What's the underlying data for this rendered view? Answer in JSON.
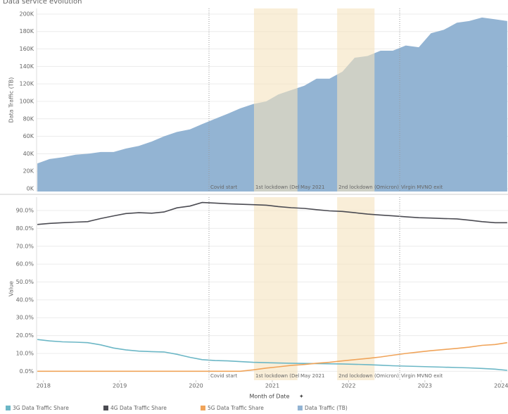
{
  "chart_data": [
    {
      "type": "area",
      "title": "Data service evolution",
      "y_label": "Data Traffic (TB)",
      "x": [
        2017.92,
        2018.08,
        2018.25,
        2018.42,
        2018.58,
        2018.75,
        2018.92,
        2019.08,
        2019.25,
        2019.42,
        2019.58,
        2019.75,
        2019.92,
        2020.08,
        2020.25,
        2020.42,
        2020.58,
        2020.75,
        2020.92,
        2021.08,
        2021.25,
        2021.42,
        2021.58,
        2021.75,
        2021.92,
        2022.08,
        2022.25,
        2022.42,
        2022.58,
        2022.75,
        2022.92,
        2023.08,
        2023.25,
        2023.42,
        2023.58,
        2023.75,
        2023.92,
        2024.08
      ],
      "series": [
        {
          "name": "Data Traffic (TB)",
          "color": "#93b4d3",
          "values": [
            29000,
            34000,
            36000,
            39000,
            40000,
            42000,
            42000,
            46000,
            49000,
            54000,
            60000,
            65000,
            68000,
            74000,
            80000,
            86000,
            92000,
            97000,
            100000,
            108000,
            113000,
            118000,
            126000,
            126000,
            134000,
            150000,
            152000,
            158000,
            158000,
            164000,
            162000,
            178000,
            182000,
            190000,
            192000,
            196000,
            194000,
            192000
          ]
        }
      ],
      "xlim": [
        2017.91,
        2024.09
      ],
      "ylim": [
        -3200,
        206400
      ],
      "yticks": [
        {
          "value": 0,
          "label": "0K"
        },
        {
          "value": 20000,
          "label": "20K"
        },
        {
          "value": 40000,
          "label": "40K"
        },
        {
          "value": 60000,
          "label": "60K"
        },
        {
          "value": 80000,
          "label": "80K"
        },
        {
          "value": 100000,
          "label": "100K"
        },
        {
          "value": 120000,
          "label": "120K"
        },
        {
          "value": 140000,
          "label": "140K"
        },
        {
          "value": 160000,
          "label": "160K"
        },
        {
          "value": 180000,
          "label": "180K"
        },
        {
          "value": 200000,
          "label": "200K"
        }
      ],
      "grid": true,
      "bands": [
        {
          "label": "1st lockdown (Del",
          "start": 2020.76,
          "end": 2021.33
        },
        {
          "label": "2nd lockdown (Omicron)",
          "start": 2021.85,
          "end": 2022.34
        }
      ],
      "markers": [
        {
          "label": "Covid start",
          "x": 2020.17,
          "line": true
        },
        {
          "label": "May 2021",
          "x": 2021.35,
          "line": false
        },
        {
          "label": "Virgin MVNO exit",
          "x": 2022.67,
          "line": true
        }
      ]
    },
    {
      "type": "line",
      "y_label": "Value",
      "x_label": "Month of Date",
      "x": [
        2017.92,
        2018.08,
        2018.25,
        2018.42,
        2018.58,
        2018.75,
        2018.92,
        2019.08,
        2019.25,
        2019.42,
        2019.58,
        2019.75,
        2019.92,
        2020.08,
        2020.25,
        2020.42,
        2020.58,
        2020.75,
        2020.92,
        2021.08,
        2021.25,
        2021.42,
        2021.58,
        2021.75,
        2021.92,
        2022.08,
        2022.25,
        2022.42,
        2022.58,
        2022.75,
        2022.92,
        2023.08,
        2023.25,
        2023.42,
        2023.58,
        2023.75,
        2023.92,
        2024.08
      ],
      "series": [
        {
          "name": "3G Data Traffic Share",
          "color": "#6cb7c6",
          "values": [
            17.8,
            17,
            16.5,
            16.3,
            16,
            14.8,
            13,
            12,
            11.3,
            11,
            10.8,
            9.5,
            7.8,
            6.5,
            6,
            5.8,
            5.4,
            5,
            4.8,
            4.6,
            4.5,
            4.4,
            4.3,
            4.2,
            4.1,
            3.9,
            3.7,
            3.4,
            3.1,
            2.9,
            2.7,
            2.5,
            2.3,
            2.1,
            1.9,
            1.6,
            1.2,
            0.5
          ]
        },
        {
          "name": "4G Data Traffic Share",
          "color": "#4b4b52",
          "values": [
            82.2,
            82.8,
            83.2,
            83.5,
            83.8,
            85.5,
            87,
            88.3,
            88.8,
            88.5,
            89.2,
            91.5,
            92.5,
            94.5,
            94.2,
            93.8,
            93.5,
            93.3,
            93,
            92.2,
            91.6,
            91.2,
            90.5,
            89.8,
            89.5,
            88.8,
            88,
            87.5,
            87,
            86.5,
            86,
            85.8,
            85.5,
            85.3,
            84.6,
            83.8,
            83.2,
            83.2
          ]
        },
        {
          "name": "5G Data Traffic Share",
          "color": "#f0a45a",
          "values": [
            0,
            0,
            0,
            0,
            0,
            0,
            0,
            0,
            0,
            0,
            0,
            0,
            0,
            0,
            0,
            0,
            0,
            0.8,
            1.8,
            2.5,
            3.3,
            3.8,
            4.5,
            5,
            5.8,
            6.5,
            7.2,
            8,
            9,
            10,
            10.8,
            11.5,
            12.2,
            12.8,
            13.5,
            14.5,
            15,
            16
          ]
        }
      ],
      "xlim": [
        2017.91,
        2024.09
      ],
      "xticks": [
        2018,
        2019,
        2020,
        2021,
        2022,
        2023,
        2024
      ],
      "ylim": [
        -5,
        97.5
      ],
      "yticks": [
        {
          "value": 0,
          "label": "0.0%"
        },
        {
          "value": 10,
          "label": "10.0%"
        },
        {
          "value": 20,
          "label": "20.0%"
        },
        {
          "value": 30,
          "label": "30.0%"
        },
        {
          "value": 40,
          "label": "40.0%"
        },
        {
          "value": 50,
          "label": "50.0%"
        },
        {
          "value": 60,
          "label": "60.0%"
        },
        {
          "value": 70,
          "label": "70.0%"
        },
        {
          "value": 80,
          "label": "80.0%"
        },
        {
          "value": 90,
          "label": "90.0%"
        }
      ],
      "grid": true
    }
  ]
}
